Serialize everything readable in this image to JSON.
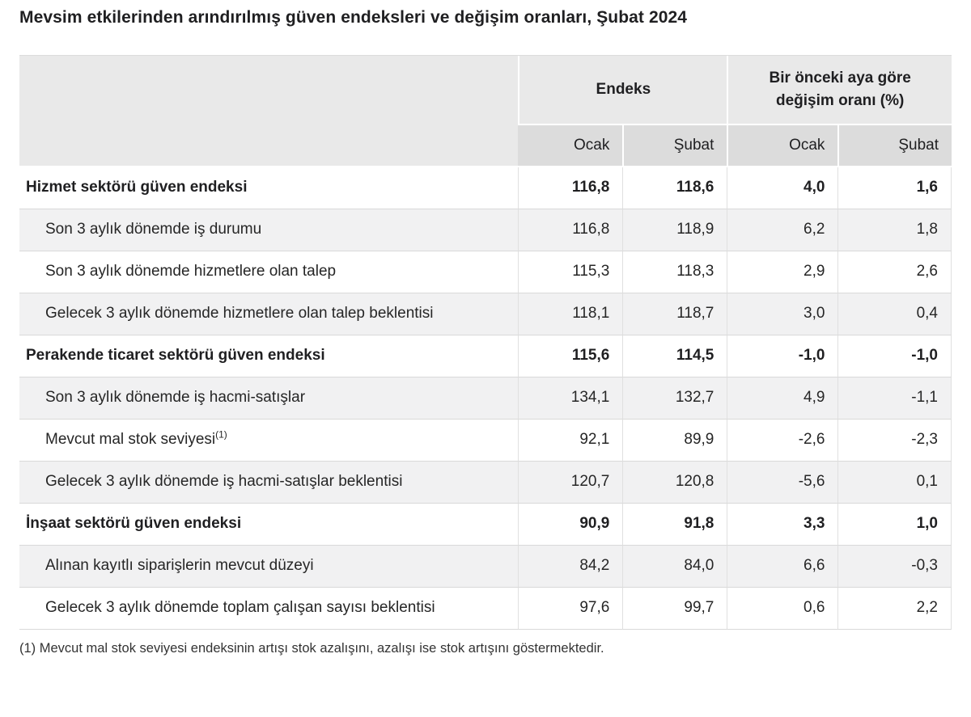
{
  "title": "Mevsim etkilerinden arındırılmış güven endeksleri ve değişim oranları, Şubat 2024",
  "table": {
    "col_groups": [
      {
        "label": "Endeks"
      },
      {
        "label": "Bir önceki aya göre değişim oranı (%)"
      }
    ],
    "sub_headers": [
      "Ocak",
      "Şubat",
      "Ocak",
      "Şubat"
    ],
    "rows": [
      {
        "label": "Hizmet sektörü güven endeksi",
        "bold": true,
        "indent": false,
        "values": [
          "116,8",
          "118,6",
          "4,0",
          "1,6"
        ]
      },
      {
        "label": "Son 3 aylık dönemde iş durumu",
        "bold": false,
        "indent": true,
        "values": [
          "116,8",
          "118,9",
          "6,2",
          "1,8"
        ]
      },
      {
        "label": "Son 3 aylık dönemde hizmetlere olan talep",
        "bold": false,
        "indent": true,
        "values": [
          "115,3",
          "118,3",
          "2,9",
          "2,6"
        ]
      },
      {
        "label": "Gelecek 3 aylık dönemde hizmetlere olan talep beklentisi",
        "bold": false,
        "indent": true,
        "values": [
          "118,1",
          "118,7",
          "3,0",
          "0,4"
        ]
      },
      {
        "label": "Perakende ticaret sektörü güven endeksi",
        "bold": true,
        "indent": false,
        "values": [
          "115,6",
          "114,5",
          "-1,0",
          "-1,0"
        ]
      },
      {
        "label": "Son 3 aylık dönemde iş hacmi-satışlar",
        "bold": false,
        "indent": true,
        "values": [
          "134,1",
          "132,7",
          "4,9",
          "-1,1"
        ]
      },
      {
        "label": "Mevcut mal stok seviyesi",
        "sup": "(1)",
        "bold": false,
        "indent": true,
        "values": [
          "92,1",
          "89,9",
          "-2,6",
          "-2,3"
        ]
      },
      {
        "label": "Gelecek 3 aylık dönemde iş hacmi-satışlar beklentisi",
        "bold": false,
        "indent": true,
        "values": [
          "120,7",
          "120,8",
          "-5,6",
          "0,1"
        ]
      },
      {
        "label": "İnşaat sektörü güven endeksi",
        "bold": true,
        "indent": false,
        "values": [
          "90,9",
          "91,8",
          "3,3",
          "1,0"
        ]
      },
      {
        "label": "Alınan kayıtlı siparişlerin mevcut düzeyi",
        "bold": false,
        "indent": true,
        "values": [
          "84,2",
          "84,0",
          "6,6",
          "-0,3"
        ]
      },
      {
        "label": "Gelecek 3 aylık dönemde toplam çalışan sayısı beklentisi",
        "bold": false,
        "indent": true,
        "values": [
          "97,6",
          "99,7",
          "0,6",
          "2,2"
        ]
      }
    ]
  },
  "footnote": "(1) Mevcut mal stok seviyesi endeksinin artışı stok azalışını, azalışı ise stok artışını göstermektedir.",
  "colors": {
    "header_bg": "#e9e9e9",
    "subheader_bg": "#dcdcdc",
    "stripe_bg": "#f1f1f2",
    "border": "#d9d9d9",
    "text": "#262626"
  }
}
